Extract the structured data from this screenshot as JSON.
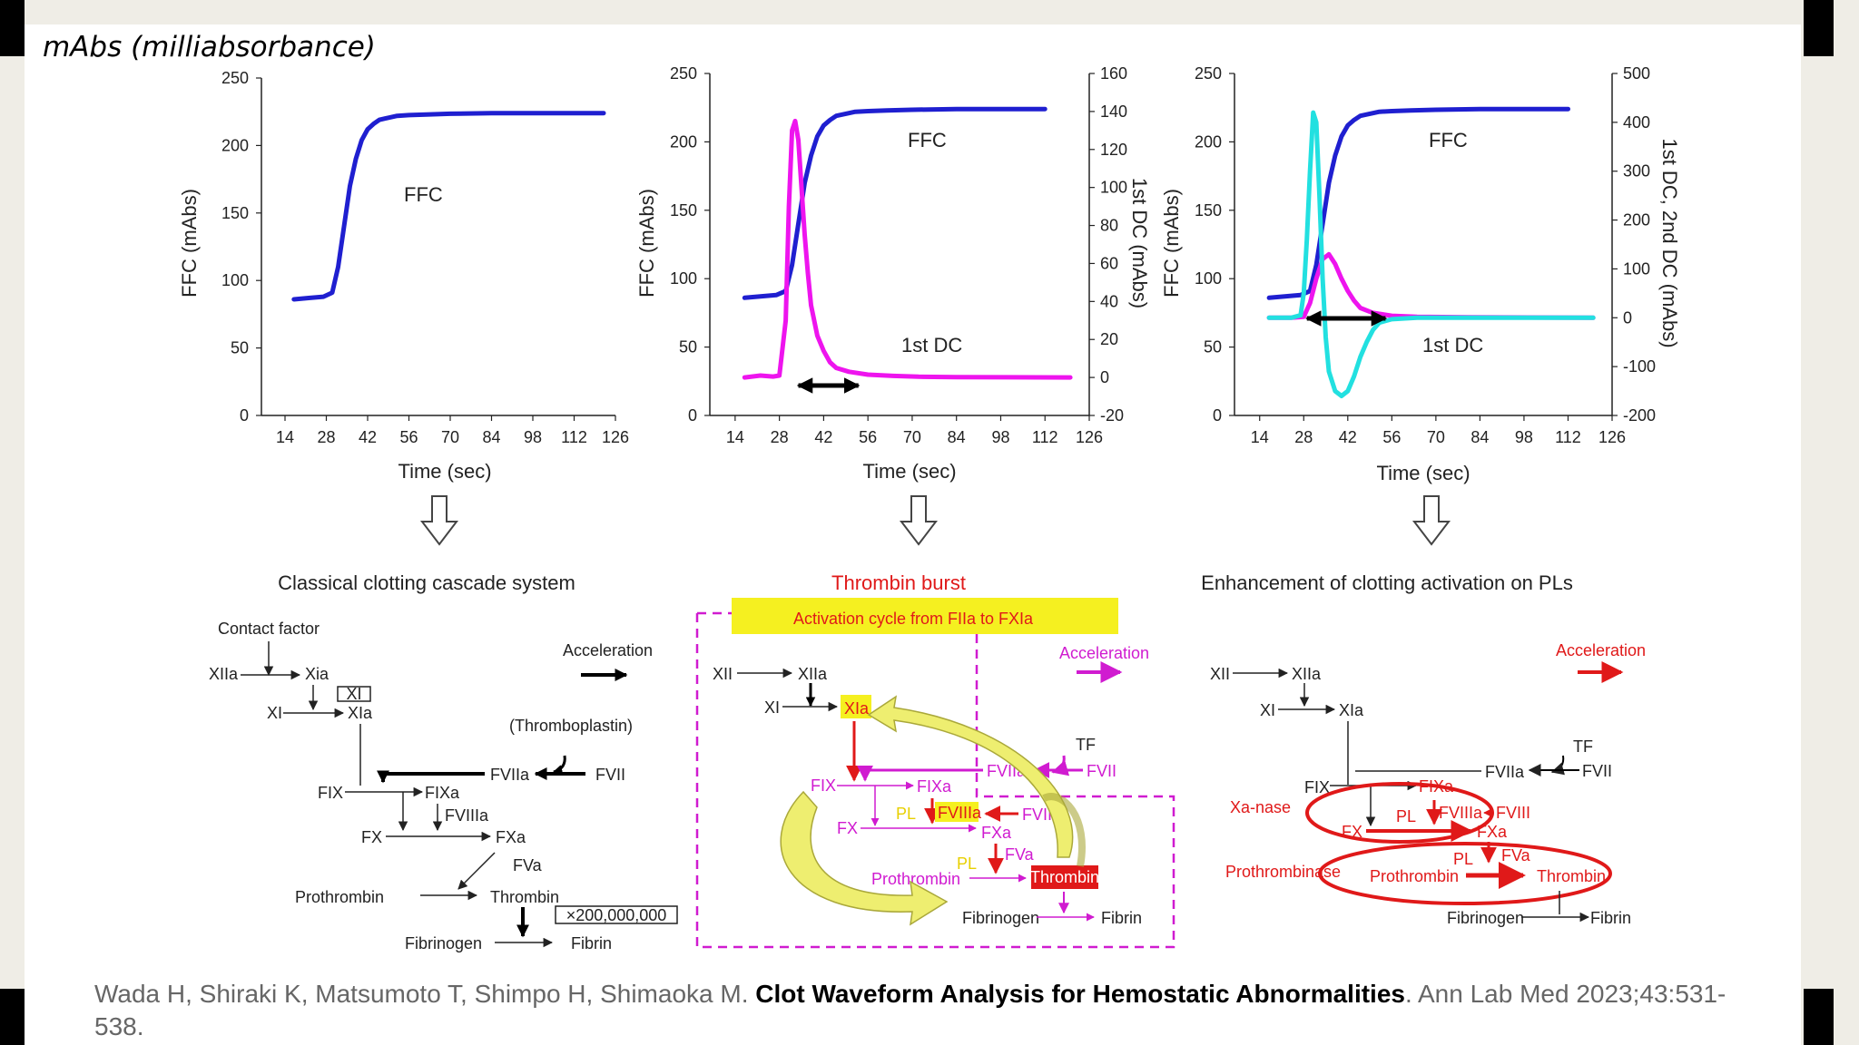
{
  "note": "mAbs (milliabsorbance)",
  "charts": {
    "left": {
      "ylabel": "FFC (mAbs)",
      "xlabel": "Time (sec)",
      "series_label": "FFC"
    },
    "middle": {
      "ylabel": "FFC (mAbs)",
      "y2label": "1st DC (mAbs)",
      "xlabel": "Time (sec)",
      "series_label_ffc": "FFC",
      "series_label_dc": "1st DC"
    },
    "right": {
      "ylabel": "FFC (mAbs)",
      "y2label": "1st DC, 2nd DC (mAbs)",
      "xlabel": "Time (sec)",
      "series_label_ffc": "FFC",
      "series_label_dc": "1st DC"
    }
  },
  "chart_data": [
    {
      "type": "line",
      "xlabel": "Time (sec)",
      "ylabel": "FFC (mAbs)",
      "xticks": [
        14,
        28,
        42,
        56,
        70,
        84,
        98,
        112,
        126
      ],
      "yticks": [
        0,
        50,
        100,
        150,
        200,
        250
      ],
      "xlim": [
        6,
        126
      ],
      "ylim": [
        0,
        250
      ],
      "series": [
        {
          "name": "FFC",
          "color": "#1f1fd0",
          "x": [
            17,
            22,
            27,
            30,
            32,
            34,
            36,
            38,
            40,
            42,
            44,
            46,
            48,
            52,
            56,
            62,
            70,
            84,
            98,
            112,
            122
          ],
          "y": [
            86,
            87,
            88,
            91,
            110,
            140,
            170,
            190,
            204,
            212,
            216,
            219,
            220,
            222,
            222.5,
            223,
            223.5,
            224,
            224,
            224,
            224
          ]
        }
      ]
    },
    {
      "type": "line",
      "xlabel": "Time (sec)",
      "ylabel": "FFC (mAbs)",
      "y2label": "1st DC (mAbs)",
      "xticks": [
        14,
        28,
        42,
        56,
        70,
        84,
        98,
        112,
        126
      ],
      "yticks": [
        0,
        50,
        100,
        150,
        200,
        250
      ],
      "y2ticks": [
        -20,
        0,
        20,
        40,
        60,
        80,
        100,
        120,
        140,
        160
      ],
      "xlim": [
        6,
        126
      ],
      "ylim": [
        0,
        250
      ],
      "y2lim": [
        -20,
        160
      ],
      "series": [
        {
          "name": "FFC",
          "axis": "y",
          "color": "#1f1fd0",
          "x": [
            17,
            22,
            27,
            30,
            32,
            34,
            36,
            38,
            40,
            42,
            44,
            46,
            48,
            52,
            56,
            62,
            70,
            84,
            98,
            112
          ],
          "y": [
            86,
            87,
            88,
            91,
            110,
            140,
            170,
            190,
            204,
            212,
            216,
            219,
            220,
            222,
            222.5,
            223,
            223.5,
            224,
            224,
            224
          ]
        },
        {
          "name": "1st DC",
          "axis": "y2",
          "color": "#ee14ee",
          "x": [
            17,
            22,
            26,
            28,
            30,
            31,
            32,
            33,
            34,
            35,
            36,
            37,
            38,
            40,
            42,
            44,
            46,
            50,
            56,
            64,
            72,
            84,
            100,
            120
          ],
          "y": [
            0,
            1,
            0.5,
            1,
            30,
            90,
            130,
            135,
            125,
            100,
            75,
            55,
            38,
            22,
            14,
            8,
            5,
            3,
            1.5,
            0.8,
            0.4,
            0.2,
            0.1,
            0
          ]
        }
      ],
      "annotation": {
        "type": "double-arrow",
        "x_from": 34,
        "x_to": 53
      }
    },
    {
      "type": "line",
      "xlabel": "Time (sec)",
      "ylabel": "FFC (mAbs)",
      "y2label": "1st DC, 2nd DC (mAbs)",
      "xticks": [
        14,
        28,
        42,
        56,
        70,
        84,
        98,
        112,
        126
      ],
      "yticks": [
        0,
        50,
        100,
        150,
        200,
        250
      ],
      "y2ticks": [
        -200,
        -100,
        0,
        100,
        200,
        300,
        400,
        500
      ],
      "xlim": [
        6,
        126
      ],
      "ylim": [
        0,
        250
      ],
      "y2lim": [
        -200,
        500
      ],
      "series": [
        {
          "name": "FFC",
          "axis": "y",
          "color": "#1f1fd0",
          "x": [
            17,
            22,
            27,
            30,
            32,
            34,
            36,
            38,
            40,
            42,
            44,
            46,
            48,
            52,
            56,
            62,
            70,
            84,
            98,
            112
          ],
          "y": [
            86,
            87,
            88,
            91,
            110,
            140,
            170,
            190,
            204,
            212,
            216,
            219,
            220,
            222,
            222.5,
            223,
            223.5,
            224,
            224,
            224
          ]
        },
        {
          "name": "1st DC",
          "axis": "y2",
          "color": "#ee14ee",
          "x": [
            17,
            24,
            28,
            30,
            32,
            34,
            36,
            38,
            40,
            42,
            44,
            46,
            50,
            56,
            64,
            80,
            100,
            120
          ],
          "y": [
            0,
            0,
            2,
            30,
            80,
            120,
            130,
            110,
            80,
            55,
            35,
            20,
            10,
            4,
            2,
            1,
            0.5,
            0
          ]
        },
        {
          "name": "2nd DC",
          "axis": "y2",
          "color": "#22e0e0",
          "x": [
            17,
            24,
            27,
            28,
            29,
            30,
            31,
            32,
            33,
            34,
            35,
            36,
            38,
            40,
            42,
            44,
            46,
            48,
            50,
            52,
            56,
            64,
            80,
            100,
            120
          ],
          "y": [
            0,
            0,
            5,
            50,
            160,
            300,
            420,
            400,
            250,
            80,
            -40,
            -110,
            -150,
            -160,
            -150,
            -120,
            -80,
            -50,
            -25,
            -10,
            -3,
            0,
            0,
            0,
            0
          ]
        }
      ],
      "annotation": {
        "type": "double-arrow",
        "x_from": 29,
        "x_to": 54
      }
    }
  ],
  "arrows_down": [
    "",
    "",
    ""
  ],
  "diagrams": {
    "classical": {
      "title": "Classical clotting cascade system",
      "contact": "Contact factor",
      "xiia": "XIIa",
      "xia": "Xia",
      "xi_box": "XI",
      "xi": "XI",
      "xia2": "XIa",
      "accel": "Acceleration",
      "thrombo": "(Thromboplastin)",
      "fviia": "FVIIa",
      "fvii": "FVII",
      "fix": "FIX",
      "fixa": "FIXa",
      "fviiia": "FVIIIa",
      "fx": "FX",
      "fxa": "FXa",
      "fva": "FVa",
      "prothrombin": "Prothrombin",
      "thrombin": "Thrombin",
      "fibrinogen": "Fibrinogen",
      "fibrin": "Fibrin",
      "multiplier": "×200,000,000"
    },
    "burst": {
      "title": "Thrombin burst",
      "banner": "Activation cycle from FIIa to FXIa",
      "accel": "Acceleration",
      "xii": "XII",
      "xiia": "XIIa",
      "xi": "XI",
      "xia": "XIa",
      "tf": "TF",
      "fviia": "FVIIa",
      "fvii": "FVII",
      "fix": "FIX",
      "fixa": "FIXa",
      "pl1": "PL",
      "fviiia": "FVIIIa",
      "fviii": "FVIII",
      "fx": "FX",
      "fxa": "FXa",
      "pl2": "PL",
      "fva": "FVa",
      "prothrombin": "Prothrombin",
      "thrombin": "Thrombin",
      "fibrinogen": "Fibrinogen",
      "fibrin": "Fibrin"
    },
    "pl": {
      "title": "Enhancement of clotting activation on PLs",
      "accel": "Acceleration",
      "xii": "XII",
      "xiia": "XIIa",
      "xi": "XI",
      "xia": "XIa",
      "tf": "TF",
      "fviia": "FVIIa",
      "fvii": "FVII",
      "fix": "FIX",
      "fixa": "FIXa",
      "xanase": "Xa-nase",
      "fx": "FX",
      "pl1": "PL",
      "fviiia": "FVIIIa",
      "fviii": "FVIII",
      "fxa": "FXa",
      "prothrombinase": "Prothrombinase",
      "prothrombin": "Prothrombin",
      "pl2": "PL",
      "fva": "FVa",
      "thrombin": "Thrombin",
      "fibrinogen": "Fibrinogen",
      "fibrin": "Fibrin"
    }
  },
  "citation": {
    "authors": "Wada H, Shiraki K, Matsumoto T, Shimpo H, Shimaoka M. ",
    "title": "Clot Waveform Analysis for Hemostatic Abnormalities",
    "journal": ". Ann Lab Med 2023;43:531-538."
  },
  "colors": {
    "ffc": "#1f1fd0",
    "dc1": "#ee14ee",
    "dc2": "#22e0e0",
    "red": "#e01919",
    "yellow": "#f5f020"
  }
}
